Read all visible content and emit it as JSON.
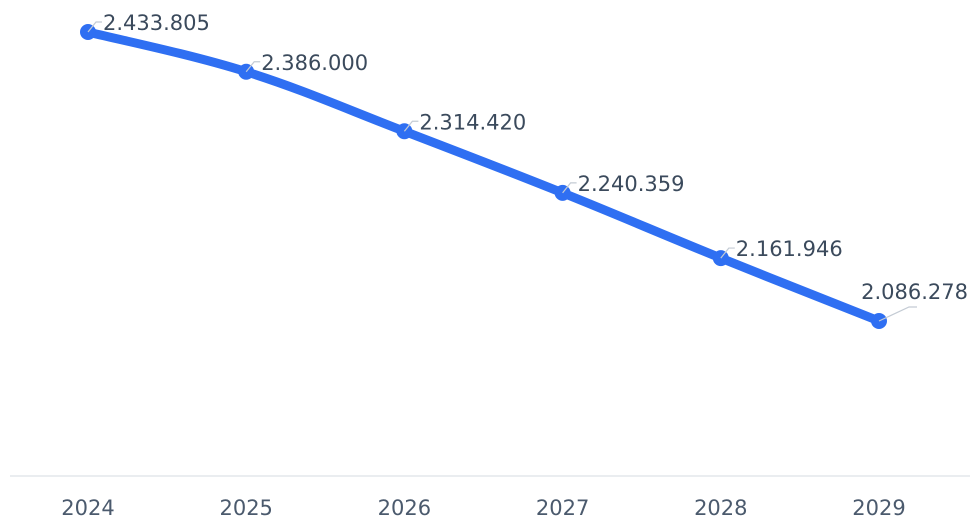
{
  "chart_data": {
    "type": "line",
    "categories": [
      "2024",
      "2025",
      "2026",
      "2027",
      "2028",
      "2029"
    ],
    "values": [
      2433805,
      2386000,
      2314420,
      2240359,
      2161946,
      2086278
    ],
    "value_labels": [
      "2.433.805",
      "2.386.000",
      "2.314.420",
      "2.240.359",
      "2.161.946",
      "2.086.278"
    ],
    "ylim": [
      1800000,
      2450000
    ],
    "grid": false,
    "colors": {
      "line": "#2f6ff2",
      "marker": "#2f6ff2"
    }
  }
}
